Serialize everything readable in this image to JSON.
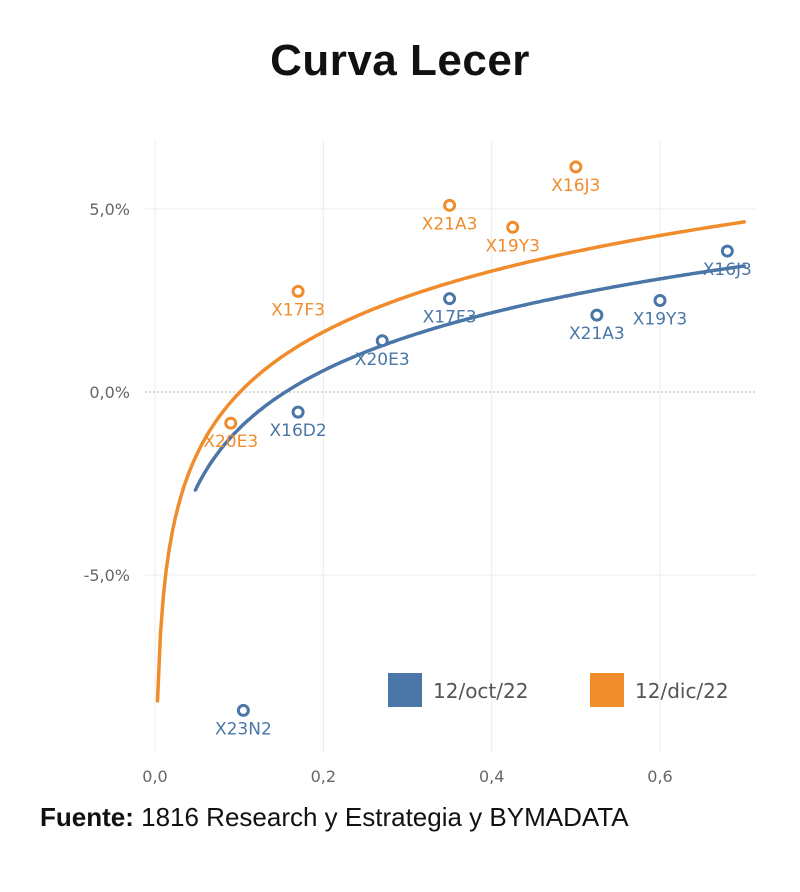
{
  "title": "Curva Lecer",
  "source": {
    "label": "Fuente:",
    "text": " 1816 Research y Estrategia y BYMADATA"
  },
  "chart_data": {
    "type": "scatter",
    "title": "Curva Lecer",
    "xlabel": "",
    "ylabel": "",
    "xlim": [
      -0.01,
      0.7
    ],
    "ylim": [
      -9.7,
      6.8
    ],
    "x_ticks": [
      0.0,
      0.2,
      0.4,
      0.6
    ],
    "x_tick_labels": [
      "0,0",
      "0,2",
      "0,4",
      "0,6"
    ],
    "y_ticks": [
      -5.0,
      0.0,
      5.0
    ],
    "y_tick_labels": [
      "-5,0%",
      "0,0%",
      "5,0%"
    ],
    "grid": true,
    "legend_position": "bottom-right",
    "series": [
      {
        "name": "12/oct/22",
        "color": "#4a76a8",
        "points": [
          {
            "label": "X23N2",
            "x": 0.105,
            "y": -8.7
          },
          {
            "label": "X16D2",
            "x": 0.17,
            "y": -0.55
          },
          {
            "label": "X20E3",
            "x": 0.27,
            "y": 1.4
          },
          {
            "label": "X17F3",
            "x": 0.35,
            "y": 2.55
          },
          {
            "label": "X21A3",
            "x": 0.525,
            "y": 2.1
          },
          {
            "label": "X19Y3",
            "x": 0.6,
            "y": 2.5
          },
          {
            "label": "X16J3",
            "x": 0.68,
            "y": 3.85
          }
        ],
        "curve": {
          "a": 6.85,
          "b": 0.155
        }
      },
      {
        "name": "12/dic/22",
        "color": "#f08c2c",
        "points": [
          {
            "label": "X20E3",
            "x": 0.09,
            "y": -0.85
          },
          {
            "label": "X17F3",
            "x": 0.17,
            "y": 2.75
          },
          {
            "label": "X21A3",
            "x": 0.35,
            "y": 5.1
          },
          {
            "label": "X19Y3",
            "x": 0.425,
            "y": 4.5
          },
          {
            "label": "X16J3",
            "x": 0.5,
            "y": 6.15
          }
        ],
        "curve": {
          "a": 7.2,
          "b": 0.101
        }
      }
    ]
  }
}
